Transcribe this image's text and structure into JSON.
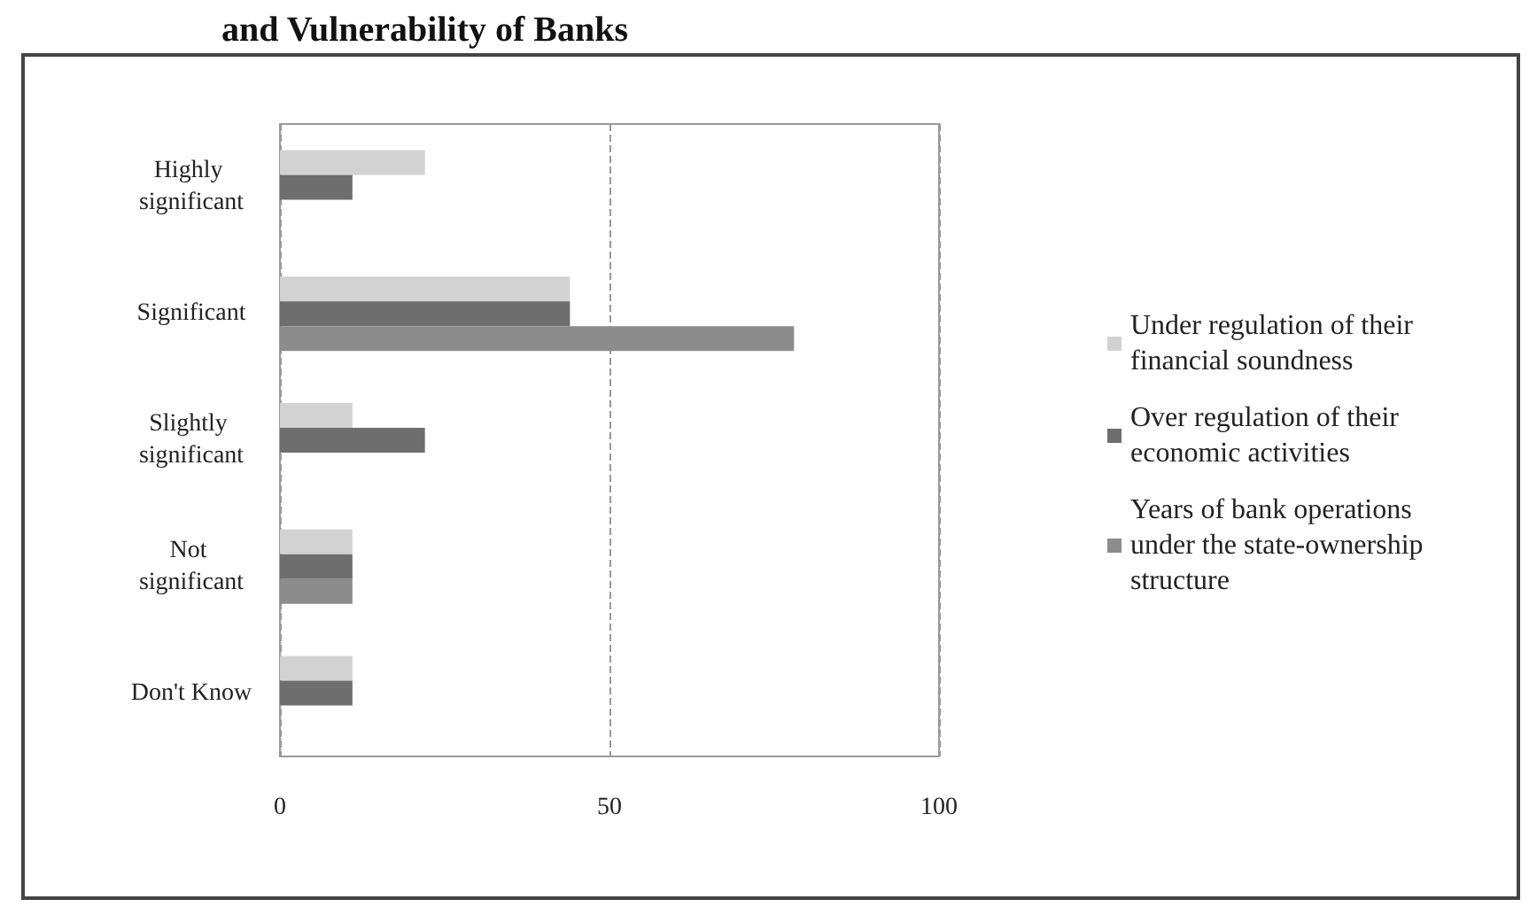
{
  "chart_data": {
    "type": "bar",
    "orientation": "horizontal",
    "title": "and Vulnerability of Banks",
    "categories": [
      "Highly significant",
      "Significant",
      "Slightly significant",
      "Not significant",
      "Don't Know"
    ],
    "series": [
      {
        "name": "Under regulation of their financial soundness",
        "color": "#d2d2d2",
        "values": [
          22,
          44,
          11,
          11,
          11
        ]
      },
      {
        "name": "Over regulation of their economic activities",
        "color": "#6e6e6e",
        "values": [
          11,
          44,
          22,
          11,
          11
        ]
      },
      {
        "name": "Years of bank operations under the state-ownership structure",
        "color": "#8c8c8c",
        "values": [
          0,
          78,
          0,
          11,
          0
        ]
      }
    ],
    "xlim": [
      0,
      100
    ],
    "xticks": [
      0,
      50,
      100
    ],
    "grid": "x",
    "legend": "right"
  }
}
